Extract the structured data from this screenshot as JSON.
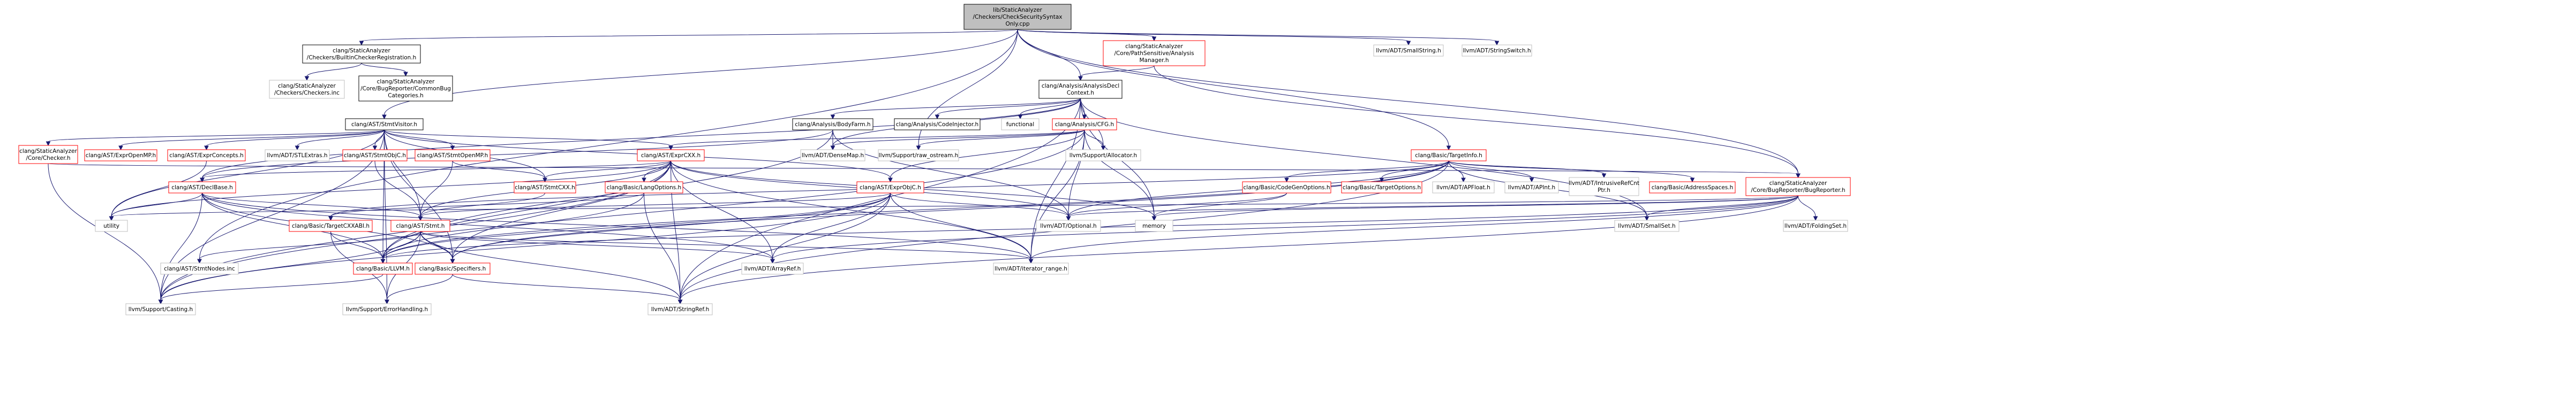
{
  "colors": {
    "edge": "#191970",
    "root_fill": "#bfbfbf",
    "node_border": "#000000",
    "red_border": "#ff0000",
    "gray_border": "#bfbfbf",
    "text": "#000000"
  },
  "nodes": [
    {
      "id": "root",
      "lines": [
        "lib/StaticAnalyzer",
        "/Checkers/CheckSecuritySyntax",
        "Only.cpp"
      ],
      "style": "root"
    },
    {
      "id": "builtin",
      "lines": [
        "clang/StaticAnalyzer",
        "/Checkers/BuiltinCheckerRegistration.h"
      ],
      "style": "black"
    },
    {
      "id": "pathsens",
      "lines": [
        "clang/StaticAnalyzer",
        "/Core/PathSensitive/Analysis",
        "Manager.h"
      ],
      "style": "red"
    },
    {
      "id": "smallstring",
      "lines": [
        "llvm/ADT/SmallString.h"
      ],
      "style": "gray"
    },
    {
      "id": "stringswitch",
      "lines": [
        "llvm/ADT/StringSwitch.h"
      ],
      "style": "gray"
    },
    {
      "id": "checkersinc",
      "lines": [
        "clang/StaticAnalyzer",
        "/Checkers/Checkers.inc"
      ],
      "style": "gray"
    },
    {
      "id": "commonbug",
      "lines": [
        "clang/StaticAnalyzer",
        "/Core/BugReporter/CommonBug",
        "Categories.h"
      ],
      "style": "black"
    },
    {
      "id": "analysisdecl",
      "lines": [
        "clang/Analysis/AnalysisDecl",
        "Context.h"
      ],
      "style": "black"
    },
    {
      "id": "stmtvisitor",
      "lines": [
        "clang/AST/StmtVisitor.h"
      ],
      "style": "black"
    },
    {
      "id": "bodyfarm",
      "lines": [
        "clang/Analysis/BodyFarm.h"
      ],
      "style": "black"
    },
    {
      "id": "codeinjector",
      "lines": [
        "clang/Analysis/CodeInjector.h"
      ],
      "style": "black"
    },
    {
      "id": "functional",
      "lines": [
        "functional"
      ],
      "style": "gray"
    },
    {
      "id": "cfg",
      "lines": [
        "clang/Analysis/CFG.h"
      ],
      "style": "red"
    },
    {
      "id": "checker",
      "lines": [
        "clang/StaticAnalyzer",
        "/Core/Checker.h"
      ],
      "style": "red"
    },
    {
      "id": "exprobjcmfh",
      "lines": [
        "clang/AST/ExprOpenMP.h"
      ],
      "style": "red"
    },
    {
      "id": "exprconcepts",
      "lines": [
        "clang/AST/ExprConcepts.h"
      ],
      "style": "red"
    },
    {
      "id": "stlextras",
      "lines": [
        "llvm/ADT/STLExtras.h"
      ],
      "style": "gray"
    },
    {
      "id": "stmtobjc",
      "lines": [
        "clang/AST/StmtObjC.h"
      ],
      "style": "red"
    },
    {
      "id": "stmtopenmp",
      "lines": [
        "clang/AST/StmtOpenMP.h"
      ],
      "style": "red"
    },
    {
      "id": "exprcxx",
      "lines": [
        "clang/AST/ExprCXX.h"
      ],
      "style": "red"
    },
    {
      "id": "densemap",
      "lines": [
        "llvm/ADT/DenseMap.h"
      ],
      "style": "gray"
    },
    {
      "id": "rawostream",
      "lines": [
        "llvm/Support/raw_ostream.h"
      ],
      "style": "gray"
    },
    {
      "id": "allocator",
      "lines": [
        "llvm/Support/Allocator.h"
      ],
      "style": "gray"
    },
    {
      "id": "targetinfo",
      "lines": [
        "clang/Basic/TargetInfo.h"
      ],
      "style": "red"
    },
    {
      "id": "declbase",
      "lines": [
        "clang/AST/DeclBase.h"
      ],
      "style": "red"
    },
    {
      "id": "stmtcxx",
      "lines": [
        "clang/AST/StmtCXX.h"
      ],
      "style": "red"
    },
    {
      "id": "langoptions",
      "lines": [
        "clang/Basic/LangOptions.h"
      ],
      "style": "red"
    },
    {
      "id": "exprobjc",
      "lines": [
        "clang/AST/ExprObjC.h"
      ],
      "style": "red"
    },
    {
      "id": "codegenopts",
      "lines": [
        "clang/Basic/CodeGenOptions.h"
      ],
      "style": "red"
    },
    {
      "id": "targetoptions",
      "lines": [
        "clang/Basic/TargetOptions.h"
      ],
      "style": "red"
    },
    {
      "id": "apfloat",
      "lines": [
        "llvm/ADT/APFloat.h"
      ],
      "style": "gray"
    },
    {
      "id": "apint",
      "lines": [
        "llvm/ADT/APInt.h"
      ],
      "style": "gray"
    },
    {
      "id": "intrusive",
      "lines": [
        "llvm/ADT/IntrusiveRefCnt",
        "Ptr.h"
      ],
      "style": "gray"
    },
    {
      "id": "addrspaces",
      "lines": [
        "clang/Basic/AddressSpaces.h"
      ],
      "style": "red"
    },
    {
      "id": "bugreporter",
      "lines": [
        "clang/StaticAnalyzer",
        "/Core/BugReporter/BugReporter.h"
      ],
      "style": "red"
    },
    {
      "id": "utility",
      "lines": [
        "utility"
      ],
      "style": "gray"
    },
    {
      "id": "targetcxxabi",
      "lines": [
        "clang/Basic/TargetCXXABI.h"
      ],
      "style": "red"
    },
    {
      "id": "stmt",
      "lines": [
        "clang/AST/Stmt.h"
      ],
      "style": "red"
    },
    {
      "id": "optional",
      "lines": [
        "llvm/ADT/Optional.h"
      ],
      "style": "gray"
    },
    {
      "id": "memory",
      "lines": [
        "memory"
      ],
      "style": "gray"
    },
    {
      "id": "smallset",
      "lines": [
        "llvm/ADT/SmallSet.h"
      ],
      "style": "gray"
    },
    {
      "id": "foldingset",
      "lines": [
        "llvm/ADT/FoldingSet.h"
      ],
      "style": "gray"
    },
    {
      "id": "stmtnodes",
      "lines": [
        "clang/AST/StmtNodes.inc"
      ],
      "style": "gray"
    },
    {
      "id": "llvmh",
      "lines": [
        "clang/Basic/LLVM.h"
      ],
      "style": "red"
    },
    {
      "id": "specifiers",
      "lines": [
        "clang/Basic/Specifiers.h"
      ],
      "style": "red"
    },
    {
      "id": "arrayref",
      "lines": [
        "llvm/ADT/ArrayRef.h"
      ],
      "style": "gray"
    },
    {
      "id": "iterrange",
      "lines": [
        "llvm/ADT/iterator_range.h"
      ],
      "style": "gray"
    },
    {
      "id": "casting",
      "lines": [
        "llvm/Support/Casting.h"
      ],
      "style": "gray"
    },
    {
      "id": "errhandling",
      "lines": [
        "llvm/Support/ErrorHandling.h"
      ],
      "style": "gray"
    },
    {
      "id": "stringref",
      "lines": [
        "llvm/ADT/StringRef.h"
      ],
      "style": "gray"
    }
  ],
  "edges": [
    [
      "root",
      "builtin"
    ],
    [
      "root",
      "pathsens"
    ],
    [
      "root",
      "smallstring"
    ],
    [
      "root",
      "stringswitch"
    ],
    [
      "root",
      "analysisdecl"
    ],
    [
      "root",
      "stmtvisitor"
    ],
    [
      "root",
      "targetinfo"
    ],
    [
      "root",
      "rawostream"
    ],
    [
      "root",
      "bugreporter"
    ],
    [
      "root",
      "stmtnodes"
    ],
    [
      "builtin",
      "checkersinc"
    ],
    [
      "builtin",
      "commonbug"
    ],
    [
      "pathsens",
      "analysisdecl"
    ],
    [
      "pathsens",
      "bugreporter"
    ],
    [
      "analysisdecl",
      "bodyfarm"
    ],
    [
      "analysisdecl",
      "codeinjector"
    ],
    [
      "analysisdecl",
      "functional"
    ],
    [
      "analysisdecl",
      "cfg"
    ],
    [
      "analysisdecl",
      "densemap"
    ],
    [
      "analysisdecl",
      "allocator"
    ],
    [
      "analysisdecl",
      "declbase"
    ],
    [
      "analysisdecl",
      "stringref"
    ],
    [
      "analysisdecl",
      "iterrange"
    ],
    [
      "analysisdecl",
      "smallset"
    ],
    [
      "analysisdecl",
      "memory"
    ],
    [
      "stmtvisitor",
      "checker"
    ],
    [
      "stmtvisitor",
      "exprobjcmfh"
    ],
    [
      "stmtvisitor",
      "exprconcepts"
    ],
    [
      "stmtvisitor",
      "stlextras"
    ],
    [
      "stmtvisitor",
      "stmtobjc"
    ],
    [
      "stmtvisitor",
      "stmtopenmp"
    ],
    [
      "stmtvisitor",
      "exprcxx"
    ],
    [
      "stmtvisitor",
      "exprobjc"
    ],
    [
      "stmtvisitor",
      "stmtcxx"
    ],
    [
      "stmtvisitor",
      "stmt"
    ],
    [
      "stmtvisitor",
      "llvmh"
    ],
    [
      "stmtvisitor",
      "casting"
    ],
    [
      "stmtvisitor",
      "errhandling"
    ],
    [
      "stmtvisitor",
      "utility"
    ],
    [
      "stmtvisitor",
      "specifiers"
    ],
    [
      "bodyfarm",
      "densemap"
    ],
    [
      "bodyfarm",
      "declbase"
    ],
    [
      "bodyfarm",
      "optional"
    ],
    [
      "bodyfarm",
      "llvmh"
    ],
    [
      "cfg",
      "densemap"
    ],
    [
      "cfg",
      "rawostream"
    ],
    [
      "cfg",
      "allocator"
    ],
    [
      "cfg",
      "exprobjc"
    ],
    [
      "cfg",
      "optional"
    ],
    [
      "cfg",
      "memory"
    ],
    [
      "cfg",
      "iterrange"
    ],
    [
      "cfg",
      "casting"
    ],
    [
      "cfg",
      "exprcxx"
    ],
    [
      "checker",
      "bugreporter"
    ],
    [
      "checker",
      "casting"
    ],
    [
      "exprconcepts",
      "utility"
    ],
    [
      "stmtobjc",
      "stmt"
    ],
    [
      "stmtopenmp",
      "stmt"
    ],
    [
      "stmtopenmp",
      "stmtcxx"
    ],
    [
      "exprcxx",
      "declbase"
    ],
    [
      "exprcxx",
      "stmtcxx"
    ],
    [
      "exprcxx",
      "langoptions"
    ],
    [
      "exprcxx",
      "stmt"
    ],
    [
      "exprcxx",
      "specifiers"
    ],
    [
      "exprcxx",
      "llvmh"
    ],
    [
      "exprcxx",
      "optional"
    ],
    [
      "exprcxx",
      "arrayref"
    ],
    [
      "exprcxx",
      "iterrange"
    ],
    [
      "exprcxx",
      "stringref"
    ],
    [
      "exprcxx",
      "memory"
    ],
    [
      "exprcxx",
      "casting"
    ],
    [
      "exprcxx",
      "utility"
    ],
    [
      "targetinfo",
      "codegenopts"
    ],
    [
      "targetinfo",
      "targetoptions"
    ],
    [
      "targetinfo",
      "apfloat"
    ],
    [
      "targetinfo",
      "apint"
    ],
    [
      "targetinfo",
      "intrusive"
    ],
    [
      "targetinfo",
      "addrspaces"
    ],
    [
      "targetinfo",
      "optional"
    ],
    [
      "targetinfo",
      "stringref"
    ],
    [
      "targetinfo",
      "smallset"
    ],
    [
      "targetinfo",
      "llvmh"
    ],
    [
      "targetinfo",
      "specifiers"
    ],
    [
      "targetinfo",
      "targetcxxabi"
    ],
    [
      "declbase",
      "stmt"
    ],
    [
      "declbase",
      "specifiers"
    ],
    [
      "declbase",
      "llvmh"
    ],
    [
      "declbase",
      "arrayref"
    ],
    [
      "declbase",
      "iterrange"
    ],
    [
      "declbase",
      "casting"
    ],
    [
      "declbase",
      "utility"
    ],
    [
      "stmtcxx",
      "stmt"
    ],
    [
      "langoptions",
      "llvmh"
    ],
    [
      "langoptions",
      "stringref"
    ],
    [
      "langoptions",
      "targetcxxabi"
    ],
    [
      "exprobjc",
      "stmt"
    ],
    [
      "exprobjc",
      "llvmh"
    ],
    [
      "exprobjc",
      "specifiers"
    ],
    [
      "exprobjc",
      "optional"
    ],
    [
      "exprobjc",
      "stringref"
    ],
    [
      "exprobjc",
      "arrayref"
    ],
    [
      "exprobjc",
      "iterrange"
    ],
    [
      "exprobjc",
      "casting"
    ],
    [
      "codegenopts",
      "memory"
    ],
    [
      "codegenopts",
      "optional"
    ],
    [
      "bugreporter",
      "memory"
    ],
    [
      "bugreporter",
      "optional"
    ],
    [
      "bugreporter",
      "foldingset"
    ],
    [
      "bugreporter",
      "smallset"
    ],
    [
      "bugreporter",
      "stringref"
    ],
    [
      "bugreporter",
      "iterrange"
    ],
    [
      "bugreporter",
      "arrayref"
    ],
    [
      "bugreporter",
      "llvmh"
    ],
    [
      "bugreporter",
      "utility"
    ],
    [
      "targetcxxabi",
      "llvmh"
    ],
    [
      "targetcxxabi",
      "errhandling"
    ],
    [
      "stmt",
      "stmtnodes"
    ],
    [
      "stmt",
      "llvmh"
    ],
    [
      "stmt",
      "specifiers"
    ],
    [
      "stmt",
      "arrayref"
    ],
    [
      "stmt",
      "iterrange"
    ],
    [
      "stmt",
      "casting"
    ],
    [
      "stmt",
      "errhandling"
    ],
    [
      "stmt",
      "stringref"
    ],
    [
      "llvmh",
      "casting"
    ],
    [
      "specifiers",
      "stringref"
    ],
    [
      "specifiers",
      "errhandling"
    ]
  ]
}
